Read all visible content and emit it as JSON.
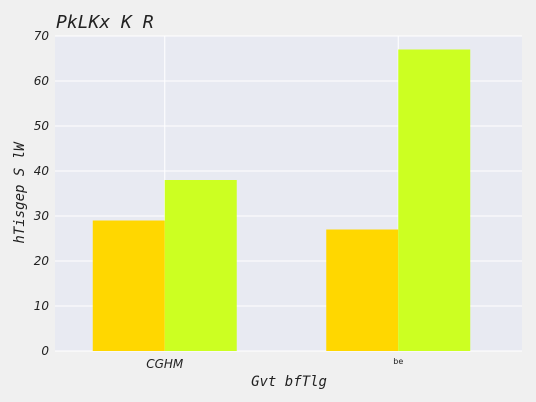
{
  "chart_data": {
    "type": "bar",
    "title": "PkLKx K R",
    "xlabel": "Gvt  bfTlg",
    "ylabel": "hTisgep S lW",
    "categories": [
      "CGHM",
      "be"
    ],
    "series": [
      {
        "values": [
          29,
          27
        ],
        "color": "#ffd700"
      },
      {
        "values": [
          38,
          67
        ],
        "color": "#ccff22"
      }
    ],
    "ylim": [
      0,
      70
    ],
    "yticks": [
      0,
      10,
      20,
      30,
      40,
      50,
      60,
      70
    ],
    "grid": true,
    "background": "#e8eaf2",
    "gridColor": "#ffffff"
  }
}
